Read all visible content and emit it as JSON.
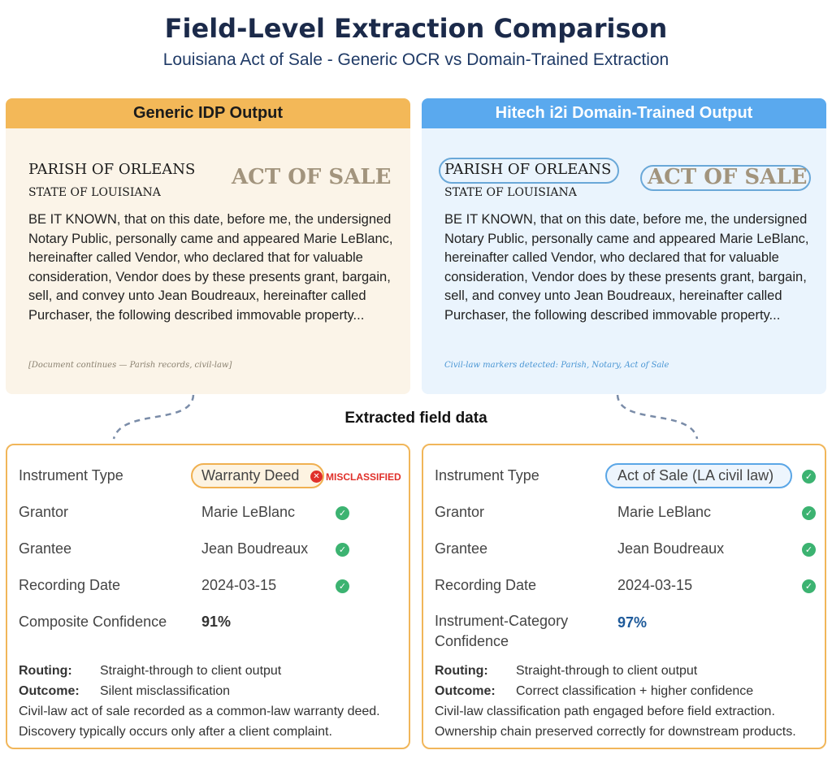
{
  "title": "Field-Level Extraction Comparison",
  "subtitle": "Louisiana Act of Sale - Generic OCR vs Domain-Trained Extraction",
  "left_doc": {
    "header": "Generic IDP Output",
    "parish": "PARISH OF ORLEANS",
    "state": "STATE OF LOUISIANA",
    "act": "ACT OF SALE",
    "body": "BE IT KNOWN, that on this date, before me, the undersigned Notary Public, personally came and appeared Marie LeBlanc, hereinafter called Vendor, who declared that for valuable consideration, Vendor does by these presents grant, bargain, sell, and convey unto Jean Boudreaux, hereinafter called Purchaser, the following described immovable property...",
    "note": "[Document continues — Parish records, civil-law]"
  },
  "right_doc": {
    "header": "Hitech i2i Domain-Trained Output",
    "parish": "PARISH OF ORLEANS",
    "state": "STATE OF LOUISIANA",
    "act": "ACT OF SALE",
    "body": "BE IT KNOWN, that on this date, before me, the undersigned Notary Public, personally came and appeared Marie LeBlanc, hereinafter called Vendor, who declared that for valuable consideration, Vendor does by these presents grant, bargain, sell, and convey unto Jean Boudreaux, hereinafter called Purchaser, the following described immovable property...",
    "note": "Civil-law markers detected: Parish, Notary, Act of Sale"
  },
  "extracted_heading": "Extracted field data",
  "left_fields": {
    "instrument_type_label": "Instrument Type",
    "instrument_type_value": "Warranty Deed",
    "misclassified": "MISCLASSIFIED",
    "grantor_label": "Grantor",
    "grantor_value": "Marie LeBlanc",
    "grantee_label": "Grantee",
    "grantee_value": "Jean Boudreaux",
    "recording_date_label": "Recording Date",
    "recording_date_value": "2024-03-15",
    "confidence_label": "Composite Confidence",
    "confidence_value": "91%",
    "routing_label": "Routing:",
    "routing_value": "Straight-through to client output",
    "outcome_label": "Outcome:",
    "outcome_value": "Silent misclassification",
    "note_line1": "Civil-law act of sale recorded as a common-law warranty deed.",
    "note_line2": "Discovery typically occurs only after a client complaint."
  },
  "right_fields": {
    "instrument_type_label": "Instrument Type",
    "instrument_type_value": "Act of Sale (LA civil law)",
    "grantor_label": "Grantor",
    "grantor_value": "Marie LeBlanc",
    "grantee_label": "Grantee",
    "grantee_value": "Jean Boudreaux",
    "recording_date_label": "Recording Date",
    "recording_date_value": "2024-03-15",
    "confidence_label_1": "Instrument-Category",
    "confidence_label_2": "Confidence",
    "confidence_value": "97%",
    "routing_label": "Routing:",
    "routing_value": "Straight-through to client output",
    "outcome_label": "Outcome:",
    "outcome_value": "Correct classification + higher confidence",
    "note_line1": "Civil-law classification path engaged before field extraction.",
    "note_line2": "Ownership chain preserved correctly for downstream products."
  },
  "icons": {
    "check": "check-circle-icon",
    "cross": "x-circle-icon"
  },
  "colors": {
    "generic_accent": "#f3b858",
    "domain_accent": "#5aa9ee",
    "success": "#3cb371",
    "error": "#e0302a"
  }
}
